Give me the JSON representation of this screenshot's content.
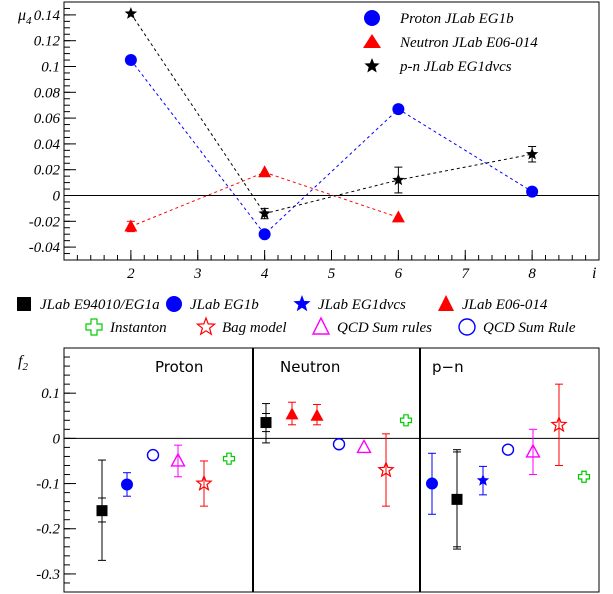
{
  "chart_data": [
    {
      "type": "scatter",
      "ylabel": "μ",
      "ylabel_sub": "4",
      "xlabel": "i",
      "xlim": [
        1,
        9
      ],
      "ylim": [
        -0.05,
        0.15
      ],
      "xticks": [
        "2",
        "3",
        "4",
        "5",
        "6",
        "7",
        "8"
      ],
      "xtick_values": [
        2,
        3,
        4,
        5,
        6,
        7,
        8
      ],
      "yticks": [
        "-0.04",
        "-0.02",
        "0",
        "0.02",
        "0.04",
        "0.06",
        "0.08",
        "0.1",
        "0.12",
        "0.14"
      ],
      "ytick_values": [
        -0.04,
        -0.02,
        0,
        0.02,
        0.04,
        0.06,
        0.08,
        0.1,
        0.12,
        0.14
      ],
      "grid": false,
      "legend_position": "top-right",
      "series": [
        {
          "name": "Proton JLab EG1b",
          "color": "#0000ff",
          "marker": "circle",
          "dashed_line": true,
          "x": [
            2,
            4,
            6,
            8
          ],
          "y": [
            0.105,
            -0.03,
            0.067,
            0.003
          ],
          "err": [
            0,
            0,
            0,
            0
          ]
        },
        {
          "name": "Neutron JLab E06-014",
          "color": "#ff0000",
          "marker": "triangle",
          "dashed_line": true,
          "x": [
            2,
            4,
            6
          ],
          "y": [
            -0.024,
            0.018,
            -0.017
          ],
          "err": [
            0.004,
            0,
            0
          ]
        },
        {
          "name": "p-n JLab EG1dvcs",
          "color": "#000000",
          "marker": "star",
          "dashed_line": true,
          "x": [
            2,
            4,
            6,
            8
          ],
          "y": [
            0.141,
            -0.014,
            0.012,
            0.032
          ],
          "err": [
            0,
            0.004,
            0.01,
            0.006
          ]
        }
      ]
    },
    {
      "type": "scatter",
      "ylabel": "f",
      "ylabel_sub": "2",
      "ylim": [
        -0.34,
        0.2
      ],
      "yticks": [
        "-0.3",
        "-0.2",
        "-0.1",
        "0",
        "0.1"
      ],
      "ytick_values": [
        -0.3,
        -0.2,
        -0.1,
        0,
        0.1
      ],
      "grid": false,
      "legend_position": "top",
      "panels": [
        "Proton",
        "Neutron",
        "p−n"
      ],
      "series": [
        {
          "name": "JLab E94010/EG1a",
          "color": "#000000",
          "marker": "square-filled",
          "points": [
            {
              "panel": 0,
              "y": -0.16,
              "err_inner": [
                -0.185,
                -0.132
              ],
              "err_outer": [
                -0.27,
                -0.048
              ]
            },
            {
              "panel": 1,
              "y": 0.035,
              "err_inner": [
                0.015,
                0.055
              ],
              "err_outer": [
                -0.01,
                0.077
              ]
            },
            {
              "panel": 2,
              "y": -0.135,
              "err_inner": [
                -0.24,
                -0.03
              ],
              "err_outer": [
                -0.245,
                -0.025
              ]
            }
          ]
        },
        {
          "name": "JLab EG1b",
          "color": "#0000ff",
          "marker": "circle-filled",
          "points": [
            {
              "panel": 0,
              "y": -0.102,
              "err_outer": [
                -0.128,
                -0.076
              ]
            },
            {
              "panel": 2,
              "y": -0.1,
              "err_outer": [
                -0.168,
                -0.033
              ]
            }
          ]
        },
        {
          "name": "JLab EG1dvcs",
          "color": "#0000ff",
          "marker": "star-filled",
          "points": [
            {
              "panel": 2,
              "y": -0.093,
              "err_outer": [
                -0.125,
                -0.062
              ]
            }
          ]
        },
        {
          "name": "JLab E06-014",
          "color": "#ff0000",
          "marker": "triangle-filled",
          "points": [
            {
              "panel": 1,
              "y": 0.053,
              "err_outer": [
                0.03,
                0.08
              ]
            },
            {
              "panel": 1,
              "y": 0.05,
              "err_outer": [
                0.03,
                0.075
              ]
            }
          ]
        },
        {
          "name": "Instanton",
          "color": "#00cc00",
          "marker": "cross-open",
          "points": [
            {
              "panel": 0,
              "y": -0.045
            },
            {
              "panel": 1,
              "y": 0.04
            },
            {
              "panel": 2,
              "y": -0.085
            }
          ]
        },
        {
          "name": "Bag model",
          "color": "#ff0000",
          "marker": "star-open",
          "points": [
            {
              "panel": 0,
              "y": -0.1,
              "err_outer": [
                -0.15,
                -0.05
              ]
            },
            {
              "panel": 1,
              "y": -0.07,
              "err_outer": [
                -0.15,
                0.01
              ]
            },
            {
              "panel": 2,
              "y": 0.03,
              "err_outer": [
                -0.06,
                0.12
              ]
            }
          ]
        },
        {
          "name": "QCD Sum rules",
          "color": "#ff00ff",
          "marker": "triangle-open",
          "points": [
            {
              "panel": 0,
              "y": -0.05,
              "err_outer": [
                -0.085,
                -0.015
              ]
            },
            {
              "panel": 1,
              "y": -0.02
            },
            {
              "panel": 2,
              "y": -0.03,
              "err_outer": [
                -0.08,
                0.02
              ]
            }
          ]
        },
        {
          "name": "QCD Sum Rule",
          "color": "#0000ff",
          "marker": "circle-open",
          "points": [
            {
              "panel": 0,
              "y": -0.037
            },
            {
              "panel": 1,
              "y": -0.013
            },
            {
              "panel": 2,
              "y": -0.025
            }
          ]
        }
      ]
    }
  ]
}
